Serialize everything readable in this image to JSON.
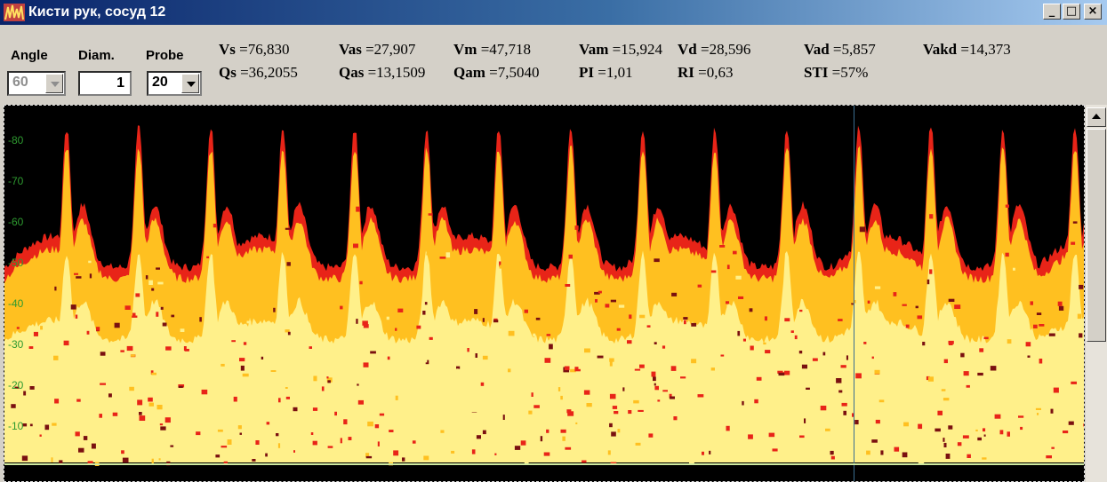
{
  "window": {
    "title": "Кисти рук,  сосуд 12",
    "minimize": "_",
    "maximize": "□",
    "close": "×"
  },
  "controls": {
    "angle_label": "Angle",
    "angle_value": "60",
    "diam_label": "Diam.",
    "diam_value": "1",
    "probe_label": "Probe",
    "probe_value": "20"
  },
  "metrics": {
    "vs": {
      "name": "Vs",
      "value": "=76,830"
    },
    "vas": {
      "name": "Vas",
      "value": "=27,907"
    },
    "vm": {
      "name": "Vm",
      "value": "=47,718"
    },
    "vam": {
      "name": "Vam",
      "value": "=15,924"
    },
    "vd": {
      "name": "Vd",
      "value": "=28,596"
    },
    "vad": {
      "name": "Vad",
      "value": "=5,857"
    },
    "vakd": {
      "name": "Vakd",
      "value": "=14,373"
    },
    "qs": {
      "name": "Qs",
      "value": "=36,2055"
    },
    "qas": {
      "name": "Qas",
      "value": "=13,1509"
    },
    "qam": {
      "name": "Qam",
      "value": "=7,5040"
    },
    "pi": {
      "name": "PI",
      "value": "=1,01"
    },
    "ri": {
      "name": "RI",
      "value": "=0,63"
    },
    "sti": {
      "name": "STI",
      "value": "=57%"
    }
  },
  "spectrum": {
    "y_ticks": [
      "80",
      "70",
      "60",
      "50",
      "40",
      "30",
      "20",
      "10"
    ],
    "colors": {
      "background": "#000000",
      "low": "#fff08a",
      "mid": "#ffc020",
      "high": "#e82418",
      "tick": "#2e9a30"
    }
  }
}
